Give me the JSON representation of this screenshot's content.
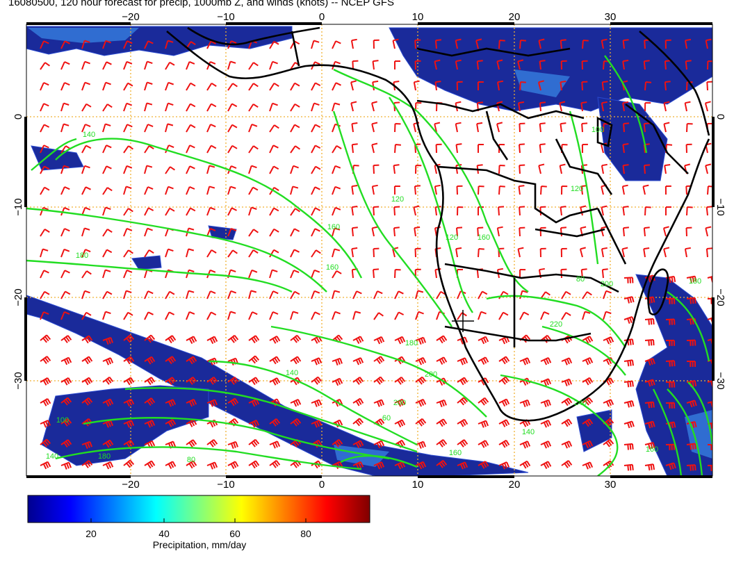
{
  "title": "16080500, 120 hour forecast for precip, 1000mb Z, and winds (knots) -- NCEP GFS",
  "map": {
    "lon_ticks": [
      "−20",
      "−10",
      "0",
      "10",
      "20",
      "30"
    ],
    "lat_ticks": [
      "0",
      "−10",
      "−20",
      "−30"
    ],
    "contour_labels": [
      "140",
      "180",
      "160",
      "120",
      "160",
      "140",
      "180",
      "200",
      "200",
      "160",
      "140",
      "120",
      "160",
      "220",
      "200",
      "180",
      "240",
      "160",
      "120",
      "100",
      "80",
      "60",
      "80",
      "100",
      "140",
      "180"
    ],
    "colors": {
      "contour": "#22dd22",
      "wind_barb": "#ee1111",
      "coastline": "#000000",
      "gridline": "#f0b030",
      "precip_low": "#1a2a9a",
      "precip_mid": "#3a8ae8"
    }
  },
  "colorbar": {
    "label": "Precipitation, mm/day",
    "ticks": [
      "20",
      "40",
      "60",
      "80"
    ],
    "colormap": "jet"
  }
}
